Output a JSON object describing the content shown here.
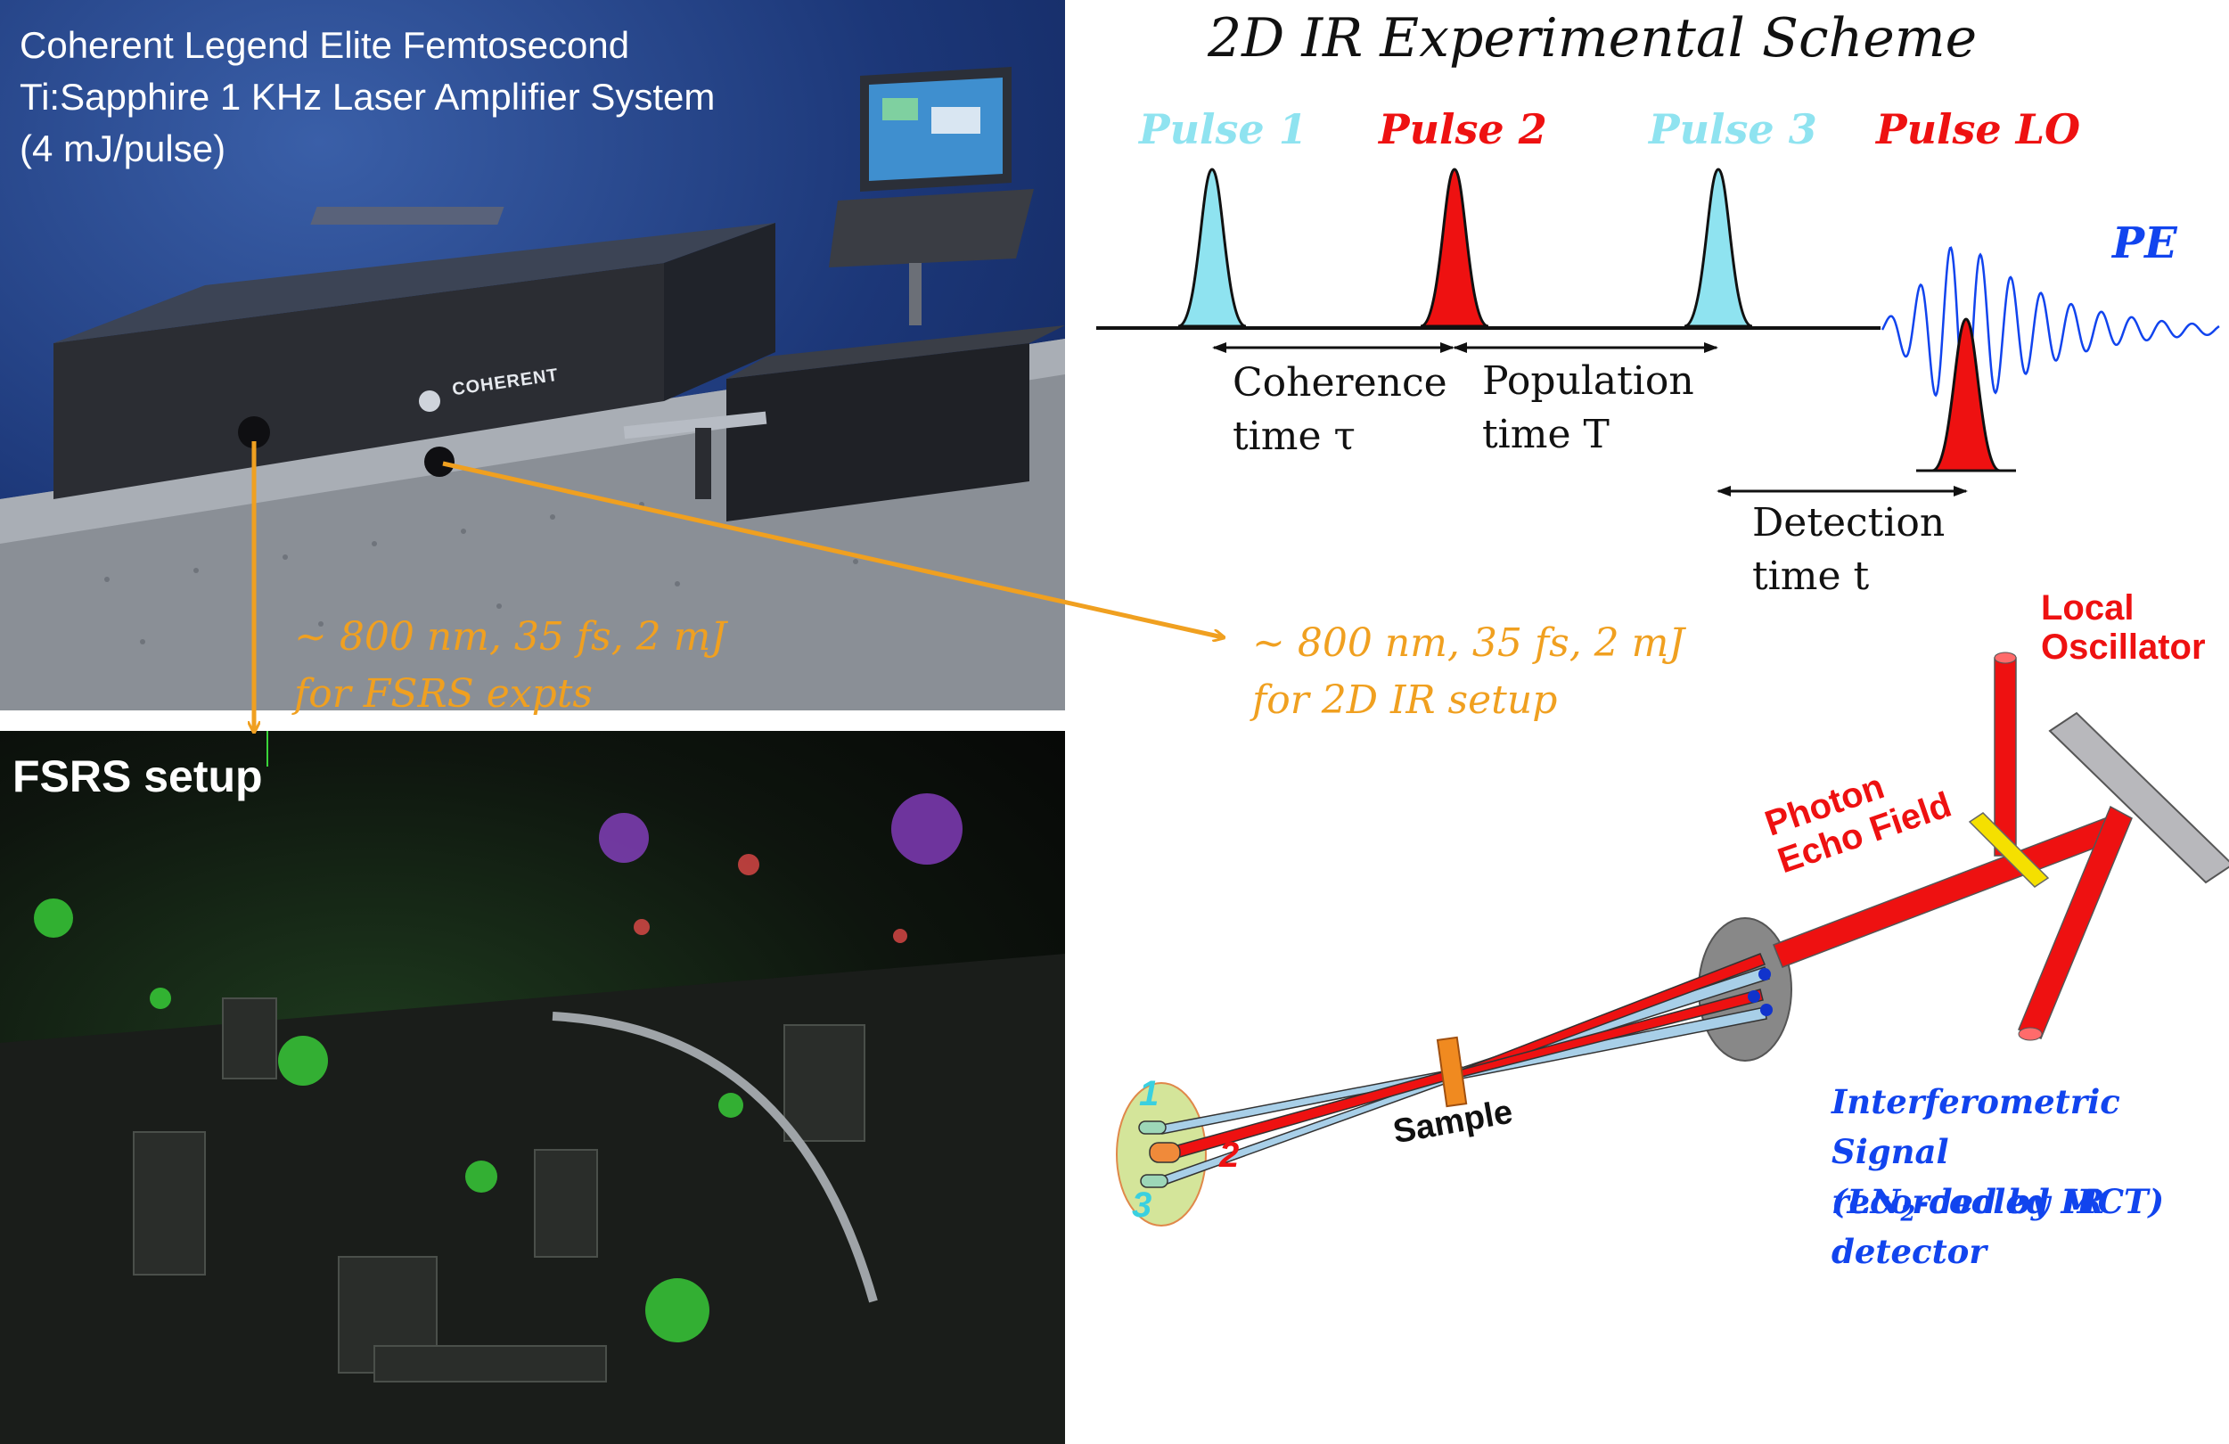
{
  "photo_top": {
    "caption": "Coherent Legend Elite Femtosecond\nTi:Sapphire 1 KHz Laser Amplifier System\n(4 mJ/pulse)",
    "logo_text": "COHERENT",
    "beam_label_fsrs": "~ 800 nm, 35 fs, 2 mJ\nfor FSRS expts"
  },
  "photo_bottom": {
    "caption": "FSRS setup"
  },
  "beam_label_2dir": "~ 800 nm, 35 fs, 2 mJ\nfor 2D IR setup",
  "scheme": {
    "title": "2D IR Experimental Scheme",
    "pulses": [
      {
        "label": "Pulse 1",
        "color": "#8fe3f0"
      },
      {
        "label": "Pulse 2",
        "color": "#ee1111"
      },
      {
        "label": "Pulse 3",
        "color": "#8fe3f0"
      },
      {
        "label": "Pulse LO",
        "color": "#ee1111"
      }
    ],
    "pe_label": "PE",
    "intervals": {
      "coherence": "Coherence\ntime τ",
      "population": "Population\ntime T",
      "detection": "Detection\ntime t"
    }
  },
  "geometry": {
    "local_oscillator": "Local\nOscillator",
    "photon_echo": "Photon\nEcho Field",
    "sample": "Sample",
    "beam_numbers": [
      "1",
      "2",
      "3"
    ],
    "signal_label": "Interferometric Signal\nrecorded by IR detector",
    "detector_prefix": "(LN",
    "detector_sub": "2",
    "detector_suffix": "-cooled MCT)"
  },
  "colors": {
    "orange": "#f0a020",
    "red": "#ee1111",
    "cyan": "#8fe3f0",
    "blue": "#1144ee"
  }
}
